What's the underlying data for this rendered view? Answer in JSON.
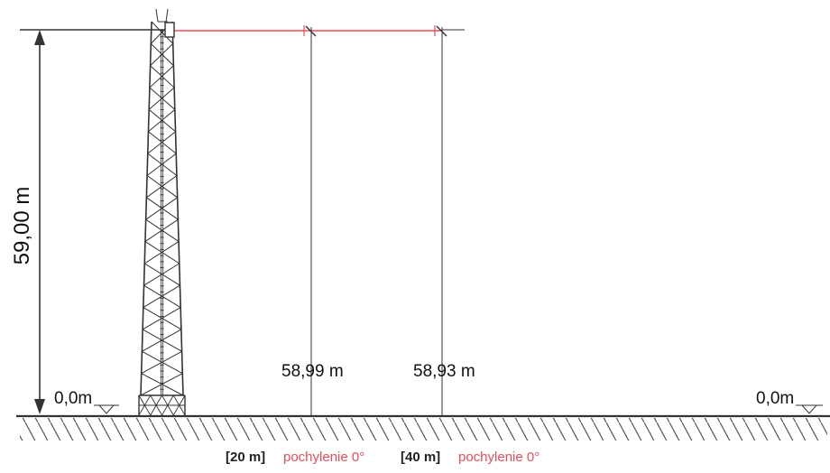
{
  "tower": {
    "height_label": "59,00 m",
    "base_level_left": "0,0m",
    "base_level_right": "0,0m"
  },
  "measurements": [
    {
      "height_label": "58,99 m",
      "distance_label": "[20 m]",
      "tilt_label": "pochylenie 0°"
    },
    {
      "height_label": "58,93 m",
      "distance_label": "[40 m]",
      "tilt_label": "pochylenie 0°"
    }
  ],
  "colors": {
    "line": "#333333",
    "red": "#ee4b59"
  }
}
